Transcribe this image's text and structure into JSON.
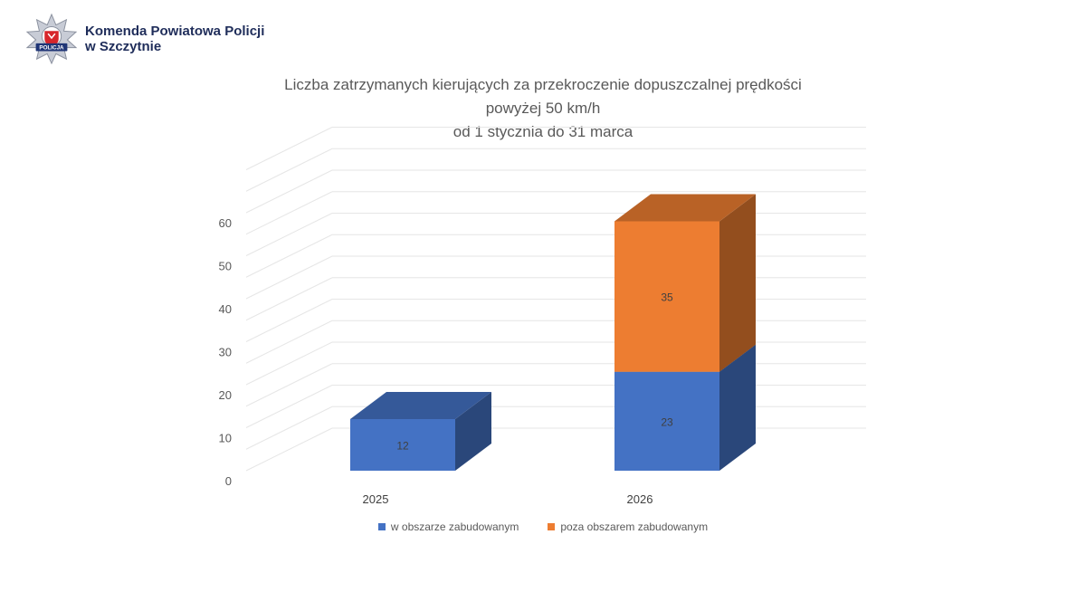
{
  "header": {
    "org_line1": "Komenda Powiatowa Policji",
    "org_line2": "w Szczytnie",
    "badge_text": "POLICJA"
  },
  "chart_data": {
    "type": "bar",
    "stacked": true,
    "three_d": true,
    "title": [
      "Liczba zatrzymanych kierujących za przekroczenie  dopuszczalnej prędkości",
      "powyżej 50 km/h",
      "od 1 stycznia do 31 marca"
    ],
    "categories": [
      "2025",
      "2026"
    ],
    "series": [
      {
        "name": "w obszarze zabudowanym",
        "values": [
          12,
          23
        ],
        "color": "#4472c4"
      },
      {
        "name": "poza obszarem zabudowanym",
        "values": [
          0,
          35
        ],
        "color": "#ed7d31"
      }
    ],
    "data_labels": [
      [
        "12",
        "23"
      ],
      [
        "",
        "35"
      ]
    ],
    "ylim": [
      0,
      60
    ],
    "y_ticks": [
      0,
      10,
      20,
      30,
      40,
      50,
      60
    ],
    "grid": true,
    "legend_position": "bottom"
  }
}
